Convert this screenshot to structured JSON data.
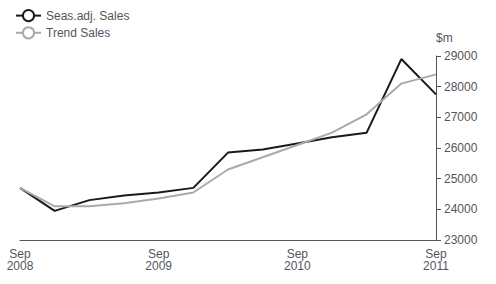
{
  "chart_data": {
    "type": "line",
    "ylabel": "$m",
    "categories": [
      "Sep\n2008",
      null,
      null,
      null,
      "Sep\n2009",
      null,
      null,
      null,
      "Sep\n2010",
      null,
      null,
      null,
      "Sep\n2011"
    ],
    "series": [
      {
        "name": "Seas.adj. Sales",
        "color": "#1a1a1a",
        "values": [
          24700,
          23950,
          24300,
          24450,
          24550,
          24700,
          25850,
          25950,
          26150,
          26350,
          26500,
          28900,
          27750
        ]
      },
      {
        "name": "Trend Sales",
        "color": "#aaaaaa",
        "values": [
          24700,
          24100,
          24100,
          24200,
          24350,
          24550,
          25300,
          25700,
          26100,
          26500,
          27100,
          28100,
          28400
        ]
      }
    ],
    "ylim": [
      23000,
      29000
    ],
    "yticks": [
      23000,
      24000,
      25000,
      26000,
      27000,
      28000,
      29000
    ],
    "grid": false,
    "legend": "upper left"
  }
}
